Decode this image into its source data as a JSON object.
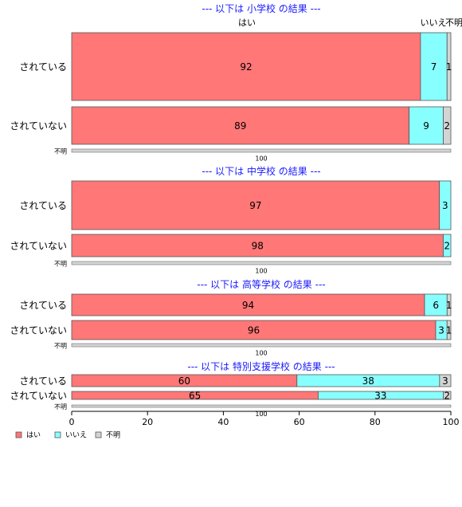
{
  "colors": {
    "yes": "#ff7777",
    "no": "#88ffff",
    "unknown": "#d4d4d4",
    "title": "#1a1aff"
  },
  "chart_data": {
    "type": "bar",
    "orientation": "horizontal",
    "stacked": true,
    "xlim": [
      0,
      100
    ],
    "xticks": [
      0,
      20,
      40,
      60,
      80,
      100
    ],
    "legend_position": "bottom-left",
    "series_names": [
      "はい",
      "いいえ",
      "不明"
    ],
    "top_column_labels": [
      "はい",
      "いいえ",
      "不明"
    ],
    "panels": [
      {
        "title": "--- 以下は 小学校 の結果 ---",
        "rows": [
          {
            "label": "されている",
            "values": [
              92,
              7,
              1
            ]
          },
          {
            "label": "されていない",
            "values": [
              89,
              9,
              2
            ]
          },
          {
            "label": "不明",
            "values": [
              0,
              0,
              100
            ]
          }
        ]
      },
      {
        "title": "--- 以下は 中学校 の結果 ---",
        "rows": [
          {
            "label": "されている",
            "values": [
              97,
              3,
              0
            ]
          },
          {
            "label": "されていない",
            "values": [
              98,
              2,
              0
            ]
          },
          {
            "label": "不明",
            "values": [
              0,
              0,
              100
            ]
          }
        ]
      },
      {
        "title": "--- 以下は 高等学校 の結果 ---",
        "rows": [
          {
            "label": "されている",
            "values": [
              94,
              6,
              1
            ]
          },
          {
            "label": "されていない",
            "values": [
              96,
              3,
              1
            ]
          },
          {
            "label": "不明",
            "values": [
              0,
              0,
              100
            ]
          }
        ]
      },
      {
        "title": "--- 以下は 特別支援学校 の結果 ---",
        "rows": [
          {
            "label": "されている",
            "values": [
              60,
              38,
              3
            ]
          },
          {
            "label": "されていない",
            "values": [
              65,
              33,
              2
            ]
          },
          {
            "label": "不明",
            "values": [
              0,
              0,
              100
            ]
          }
        ]
      }
    ]
  }
}
